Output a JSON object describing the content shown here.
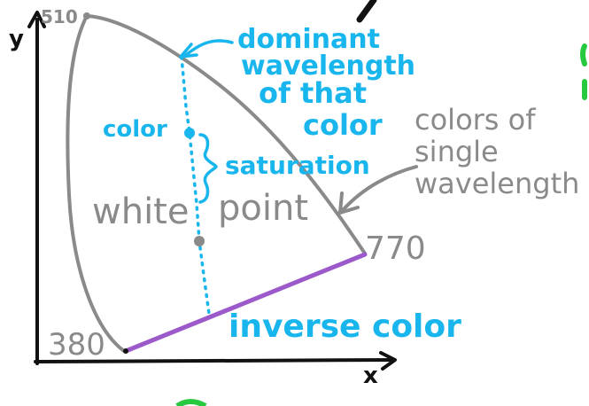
{
  "axes": {
    "y_label": "y",
    "x_label": "x"
  },
  "curve": {
    "start_label": "510",
    "end_label": "770",
    "bottom_label": "380"
  },
  "annotations": {
    "dominant_line1": "dominant",
    "dominant_line2": "wavelength",
    "dominant_line3": "of that",
    "dominant_line4": "color",
    "color": "color",
    "saturation": "saturation",
    "white_point_1": "white",
    "white_point_2": "point",
    "spectral_1": "colors of",
    "spectral_2": "single",
    "spectral_3": "wavelength",
    "inverse": "inverse color"
  },
  "colors": {
    "axis": "#111111",
    "curve": "#8a8a8a",
    "annotation": "#19b6ee",
    "purple_line": "#9b59c9",
    "green_fragment": "#27c93f"
  }
}
